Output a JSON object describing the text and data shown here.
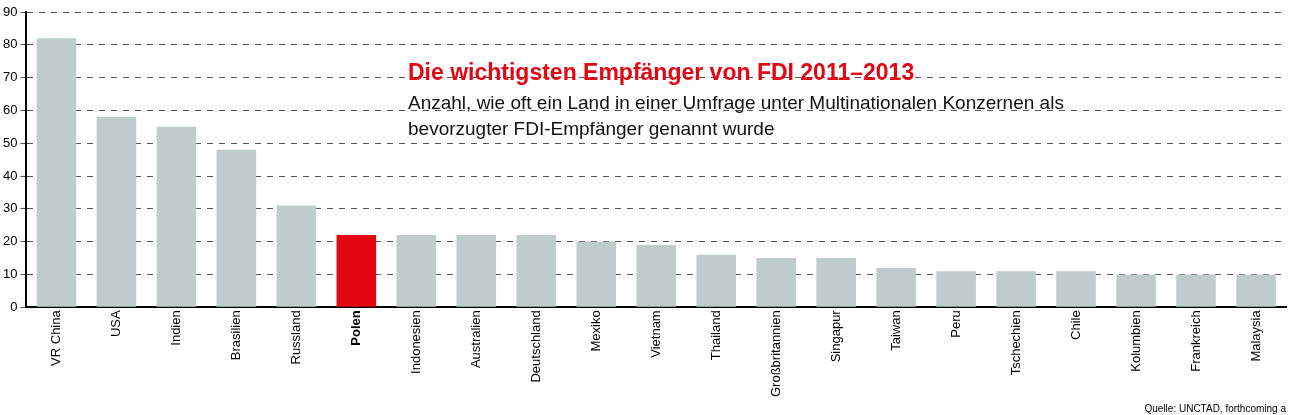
{
  "chart_data": {
    "type": "bar",
    "title": "Die wichtigsten Empfänger von FDI 2011–2013",
    "subtitle": "Anzahl, wie oft ein Land in einer Umfrage unter Multinationalen Konzernen als bevorzugter FDI-Empfänger genannt wurde",
    "categories": [
      "VR China",
      "USA",
      "Indien",
      "Brasilien",
      "Russland",
      "Polen",
      "Indonesien",
      "Australien",
      "Deutschland",
      "Mexiko",
      "Vietnam",
      "Thailand",
      "Großbritannien",
      "Singapur",
      "Taiwan",
      "Peru",
      "Tschechien",
      "Chile",
      "Kolumbien",
      "Frankreich",
      "Malaysia"
    ],
    "values": [
      82,
      58,
      55,
      48,
      31,
      22,
      22,
      22,
      22,
      20,
      19,
      16,
      15,
      15,
      12,
      11,
      11,
      11,
      10,
      10,
      10
    ],
    "colors": [
      "#bfcccb",
      "#bfcccb",
      "#bfcccb",
      "#bfcccb",
      "#bfcccb",
      "#e30613",
      "#bfcccb",
      "#bfcccb",
      "#bfcccb",
      "#bfcccb",
      "#bfcccb",
      "#bfcccb",
      "#bfcccb",
      "#bfcccb",
      "#bfcccb",
      "#bfcccb",
      "#bfcccb",
      "#bfcccb",
      "#bfcccb",
      "#bfcccb",
      "#bfcccb"
    ],
    "ylim": [
      0,
      90
    ],
    "yticks": [
      0,
      10,
      20,
      30,
      40,
      50,
      60,
      70,
      80,
      90
    ],
    "grid": "y",
    "legend": false,
    "annotations": [
      "Quelle: UNCTAD, forthcoming a"
    ]
  }
}
